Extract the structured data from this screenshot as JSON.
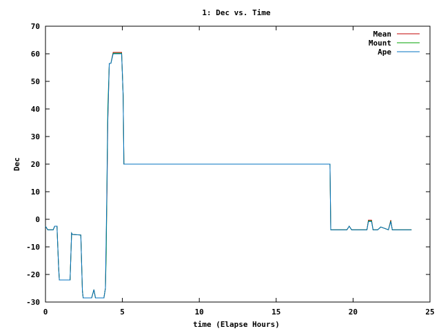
{
  "chart_data": {
    "type": "line",
    "title": "1: Dec vs. Time",
    "xlabel": "time (Elapse Hours)",
    "ylabel": "Dec",
    "xlim": [
      0,
      25
    ],
    "ylim": [
      -30,
      70
    ],
    "xticks": [
      0,
      5,
      10,
      15,
      20,
      25
    ],
    "yticks": [
      -30,
      -20,
      -10,
      0,
      10,
      20,
      30,
      40,
      50,
      60,
      70
    ],
    "legend_position": "top-right",
    "grid": false,
    "series": [
      {
        "name": "Mean",
        "color": "#c00000",
        "x": [
          0,
          0.15,
          0.5,
          0.6,
          0.75,
          0.85,
          0.9,
          1.6,
          1.7,
          1.75,
          2.3,
          2.4,
          2.45,
          3.0,
          3.15,
          3.25,
          3.35,
          3.8,
          3.9,
          4.0,
          4.05,
          4.15,
          4.25,
          4.4,
          4.5,
          4.95,
          5.05,
          5.1,
          18.5,
          18.55,
          18.7,
          19.6,
          19.75,
          19.9,
          20.3,
          20.9,
          21.0,
          21.2,
          21.3,
          21.6,
          21.8,
          22.3,
          22.45,
          22.55,
          22.7,
          23.8
        ],
        "y": [
          -2.5,
          -3.8,
          -3.8,
          -2.5,
          -2.5,
          -17,
          -22,
          -22,
          -5,
          -5.5,
          -5.7,
          -26,
          -28.5,
          -28.5,
          -25.5,
          -28.5,
          -28.5,
          -28.5,
          -25,
          10,
          35,
          56.5,
          56.5,
          60.5,
          60.5,
          60.5,
          45,
          20,
          20,
          -3.8,
          -3.8,
          -3.8,
          -2.5,
          -3.8,
          -3.8,
          -3.8,
          -0.3,
          -0.3,
          -3.8,
          -3.8,
          -2.8,
          -3.8,
          -0.3,
          -3.8,
          -3.8,
          -3.8
        ]
      },
      {
        "name": "Mount",
        "color": "#00a000",
        "x": [
          0,
          0.15,
          0.5,
          0.6,
          0.75,
          0.85,
          0.9,
          1.6,
          1.7,
          1.75,
          2.3,
          2.4,
          2.45,
          3.0,
          3.15,
          3.25,
          3.35,
          3.8,
          3.9,
          3.95,
          4.0,
          4.05,
          4.15,
          4.25,
          4.4,
          4.5,
          4.95,
          5.05,
          5.1,
          18.5,
          18.55,
          18.7,
          19.6,
          19.75,
          19.9,
          20.3,
          20.9,
          21.0,
          21.2,
          21.3,
          21.6,
          21.8,
          22.3,
          22.45,
          22.55,
          22.7,
          23.8
        ],
        "y": [
          -2.5,
          -3.8,
          -3.8,
          -2.5,
          -2.5,
          -17,
          -22,
          -22,
          -5,
          -5.5,
          -5.7,
          -26,
          -28.5,
          -28.5,
          -25.5,
          -28.5,
          -28.5,
          -28.5,
          -25,
          -12,
          15,
          40,
          56.5,
          56.5,
          60.2,
          60.2,
          60.2,
          45,
          20,
          20,
          -3.8,
          -3.8,
          -3.8,
          -2.5,
          -3.8,
          -3.8,
          -3.8,
          -0.6,
          -0.6,
          -3.8,
          -3.8,
          -2.8,
          -3.8,
          -0.6,
          -3.8,
          -3.8,
          -3.8
        ]
      },
      {
        "name": "Ape",
        "color": "#0070c0",
        "x": [
          0,
          0.15,
          0.5,
          0.6,
          0.75,
          0.85,
          0.9,
          1.6,
          1.7,
          1.75,
          2.3,
          2.4,
          2.45,
          3.0,
          3.15,
          3.25,
          3.35,
          3.8,
          3.9,
          4.0,
          4.05,
          4.15,
          4.25,
          4.4,
          4.5,
          4.95,
          5.05,
          5.1,
          18.5,
          18.55,
          18.7,
          19.6,
          19.75,
          19.9,
          20.3,
          20.9,
          21.0,
          21.2,
          21.3,
          21.6,
          21.8,
          22.3,
          22.45,
          22.55,
          22.7,
          23.8
        ],
        "y": [
          -2.5,
          -3.8,
          -3.8,
          -2.5,
          -2.5,
          -17,
          -22,
          -22,
          -5,
          -5.5,
          -5.7,
          -26,
          -28.5,
          -28.5,
          -25.5,
          -28.5,
          -28.5,
          -28.5,
          -25,
          14,
          36,
          56.5,
          56.5,
          60,
          60,
          60,
          45,
          20,
          20,
          -3.8,
          -3.8,
          -3.8,
          -2.5,
          -3.8,
          -3.8,
          -3.8,
          -0.8,
          -0.8,
          -3.8,
          -3.8,
          -2.8,
          -3.8,
          -0.8,
          -3.8,
          -3.8,
          -3.8
        ]
      }
    ]
  }
}
